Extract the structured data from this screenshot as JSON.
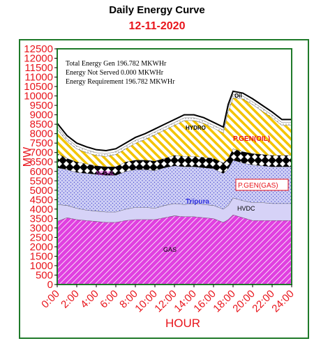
{
  "chart_data": {
    "type": "area",
    "title": "Daily Energy Curve",
    "subtitle": "12-11-2020",
    "xlabel": "HOUR",
    "ylabel": "MW",
    "ylim": [
      0,
      12500
    ],
    "ytick_step": 500,
    "xlim": [
      0,
      24
    ],
    "xticks": [
      "0:00",
      "2:00",
      "4:00",
      "6:00",
      "8:00",
      "10:00",
      "12:00",
      "14:00",
      "16:00",
      "18:00",
      "20:00",
      "22:00",
      "24:00"
    ],
    "x": [
      0,
      1,
      2,
      3,
      4,
      5,
      6,
      7,
      8,
      9,
      10,
      11,
      12,
      13,
      14,
      15,
      16,
      17,
      17.5,
      18,
      19,
      20,
      21,
      22,
      23,
      24
    ],
    "stacked": true,
    "series": [
      {
        "name": "GAS",
        "color": "#e040e0",
        "values": [
          3350,
          3550,
          3450,
          3400,
          3350,
          3300,
          3300,
          3400,
          3450,
          3450,
          3450,
          3550,
          3650,
          3600,
          3600,
          3550,
          3500,
          3300,
          3450,
          3700,
          3550,
          3400,
          3400,
          3400,
          3400,
          3400
        ]
      },
      {
        "name": "HVDC",
        "color": "#d6d2f7",
        "values": [
          900,
          650,
          600,
          550,
          550,
          550,
          550,
          600,
          650,
          650,
          600,
          650,
          650,
          650,
          700,
          700,
          700,
          700,
          750,
          900,
          900,
          950,
          950,
          900,
          900,
          900
        ]
      },
      {
        "name": "Tripura",
        "color": "#c9cdf0",
        "values": [
          1950,
          1900,
          1900,
          1950,
          1950,
          1950,
          1950,
          2000,
          2000,
          2000,
          2000,
          2000,
          2000,
          2000,
          1950,
          1950,
          1950,
          1900,
          1950,
          2000,
          2000,
          2000,
          1950,
          1950,
          1950,
          1950
        ]
      },
      {
        "name": "",
        "color": "#ffffff",
        "values": [
          750,
          600,
          550,
          500,
          450,
          450,
          450,
          500,
          500,
          500,
          500,
          500,
          550,
          550,
          550,
          550,
          550,
          550,
          550,
          600,
          600,
          600,
          600,
          600,
          600,
          600
        ]
      },
      {
        "name": "P.GEN(OIL)",
        "color": "#f5d000",
        "values": [
          1300,
          900,
          700,
          600,
          550,
          550,
          650,
          700,
          900,
          1100,
          1400,
          1500,
          1600,
          1900,
          1900,
          1800,
          1600,
          1600,
          2500,
          2700,
          2800,
          2600,
          2300,
          2000,
          1600,
          1600
        ]
      },
      {
        "name": "HYDRO",
        "color": "#ffffff",
        "values": [
          150,
          150,
          150,
          150,
          150,
          150,
          150,
          150,
          150,
          150,
          150,
          150,
          150,
          150,
          150,
          150,
          150,
          150,
          200,
          200,
          150,
          150,
          150,
          150,
          150,
          150
        ]
      },
      {
        "name": "Oil",
        "color": "#ffffff",
        "values": [
          150,
          150,
          150,
          150,
          150,
          150,
          150,
          150,
          150,
          150,
          150,
          150,
          150,
          150,
          150,
          150,
          150,
          150,
          150,
          150,
          150,
          150,
          150,
          150,
          150,
          150
        ]
      }
    ],
    "labels": {
      "gas": "GAS",
      "hvdc": "HVDC",
      "tripura": "Tripura",
      "pgen_gas": "P.GEN(GAS)",
      "pgen_oil": "P.GEN(OIL)",
      "hydro": "HYDRO",
      "oil": "Oil",
      "nepal": "NEPAL"
    },
    "annotations": [
      "Total Energy Gen 196.782 MKWHr",
      "Energy Not Served   0.000 MKWHr",
      "Energy Requirement       196.782 MKWHr"
    ],
    "grid": false
  }
}
